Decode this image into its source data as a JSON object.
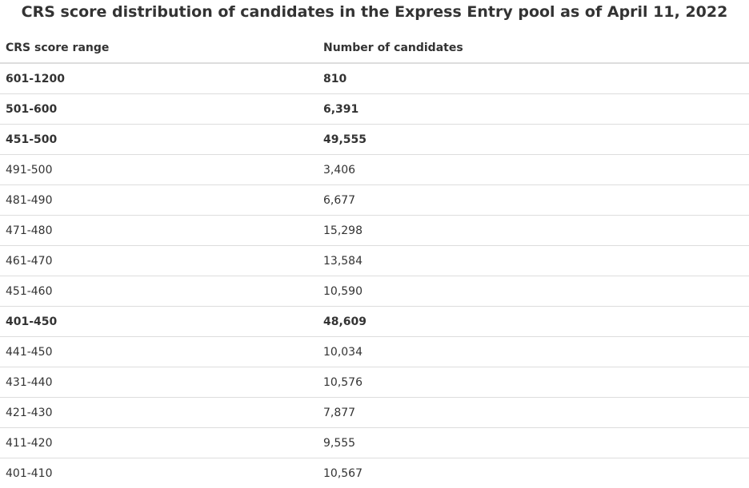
{
  "title": "CRS score distribution of candidates in the Express Entry pool as of April 11, 2022",
  "table": {
    "headers": [
      "CRS score range",
      "Number of candidates"
    ],
    "rows": [
      {
        "range": "601-1200",
        "count": "810",
        "bold": true
      },
      {
        "range": "501-600",
        "count": "6,391",
        "bold": true
      },
      {
        "range": "451-500",
        "count": "49,555",
        "bold": true
      },
      {
        "range": "491-500",
        "count": "3,406",
        "bold": false
      },
      {
        "range": "481-490",
        "count": "6,677",
        "bold": false
      },
      {
        "range": "471-480",
        "count": "15,298",
        "bold": false
      },
      {
        "range": "461-470",
        "count": "13,584",
        "bold": false
      },
      {
        "range": "451-460",
        "count": "10,590",
        "bold": false
      },
      {
        "range": "401-450",
        "count": "48,609",
        "bold": true
      },
      {
        "range": "441-450",
        "count": "10,034",
        "bold": false
      },
      {
        "range": "431-440",
        "count": "10,576",
        "bold": false
      },
      {
        "range": "421-430",
        "count": "7,877",
        "bold": false
      },
      {
        "range": "411-420",
        "count": "9,555",
        "bold": false
      },
      {
        "range": "401-410",
        "count": "10,567",
        "bold": false
      }
    ]
  }
}
